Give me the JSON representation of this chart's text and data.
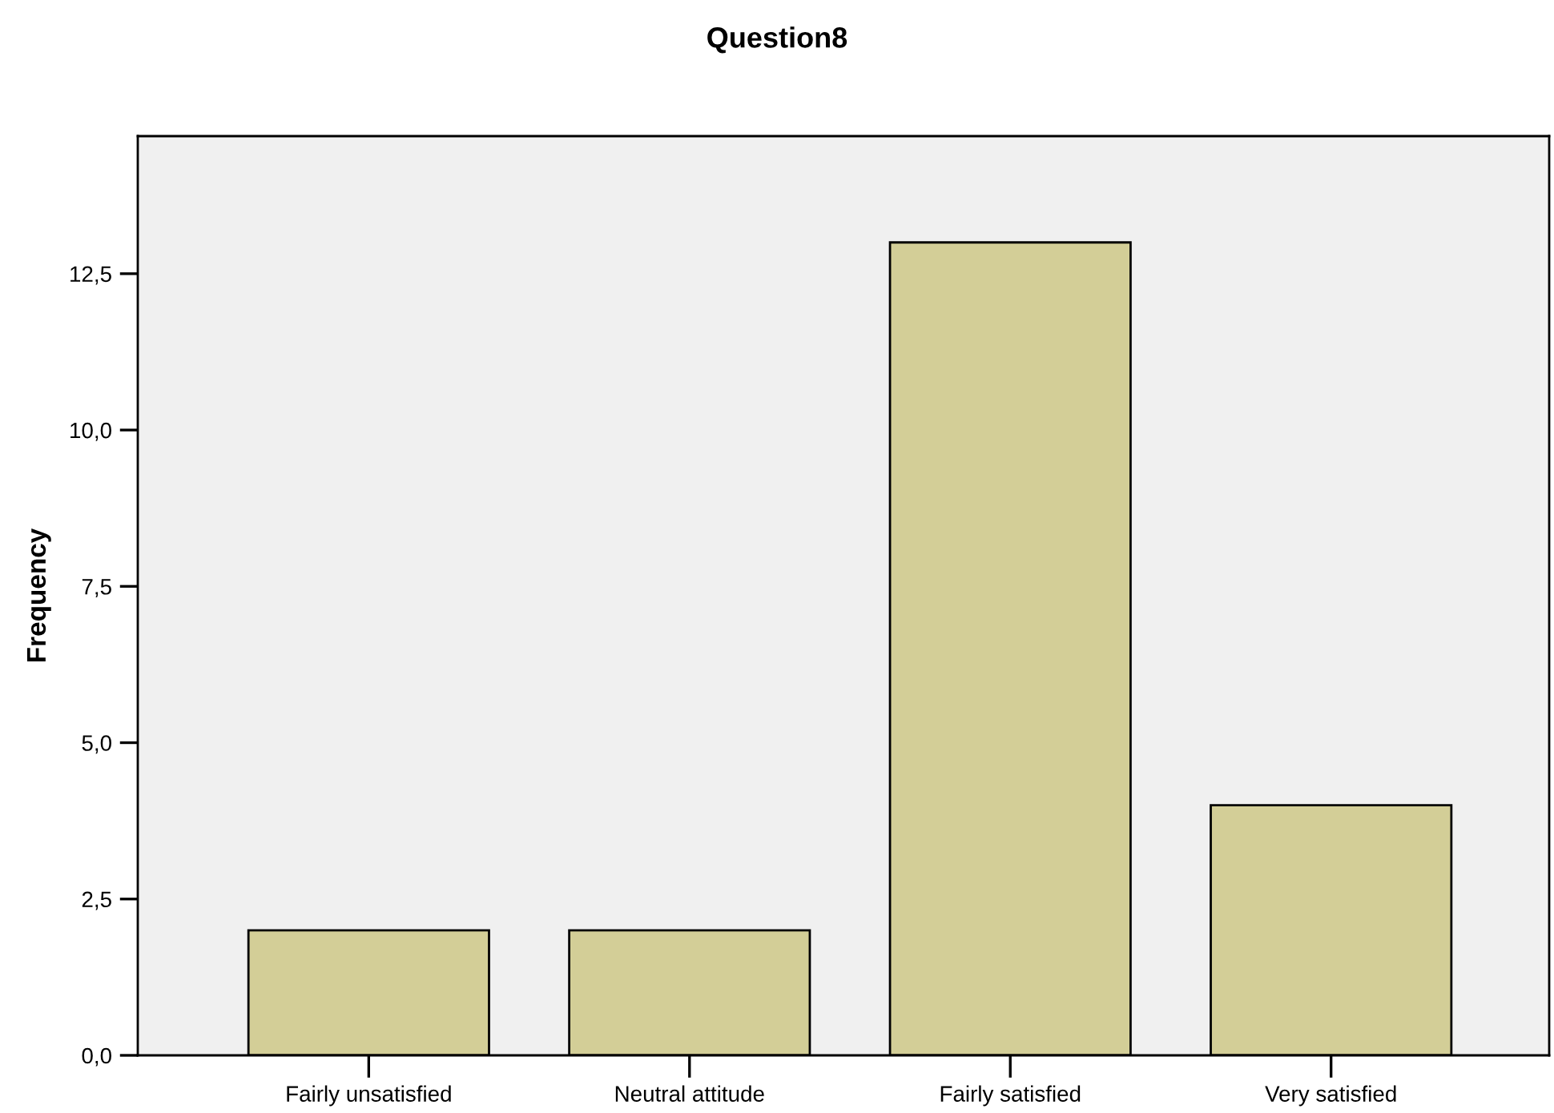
{
  "chart_data": {
    "type": "bar",
    "title": "Question8",
    "ylabel": "Frequency",
    "categories": [
      "Fairly unsatisfied",
      "Neutral attitude",
      "Fairly satisfied",
      "Very satisfied"
    ],
    "values": [
      2,
      2,
      13,
      4
    ],
    "color": "#d3ce97",
    "ylim": [
      0,
      14.7
    ],
    "yticks": [
      {
        "value": 0,
        "label": "0,0"
      },
      {
        "value": 2.5,
        "label": "2,5"
      },
      {
        "value": 5,
        "label": "5,0"
      },
      {
        "value": 7.5,
        "label": "7,5"
      },
      {
        "value": 10,
        "label": "10,0"
      },
      {
        "value": 12.5,
        "label": "12,5"
      }
    ],
    "grid": false,
    "legend": false
  }
}
